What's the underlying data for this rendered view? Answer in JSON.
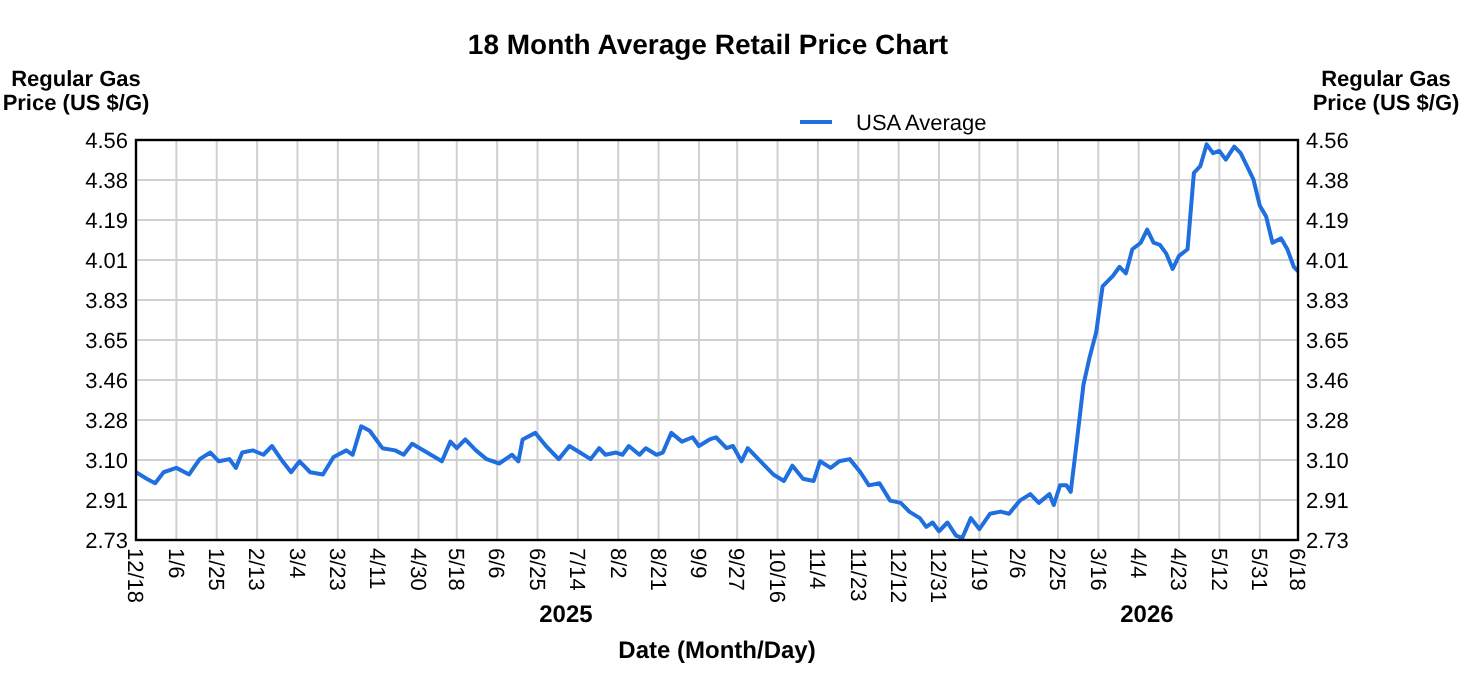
{
  "chart_data": {
    "type": "line",
    "title": "18 Month Average Retail Price Chart",
    "xlabel": "Date (Month/Day)",
    "ylabel": "Regular Gas Price (US $/G)",
    "y2label": "Regular Gas Price (US $/G)",
    "legend": "top",
    "grid": true,
    "annotations": [
      "2025",
      "2026"
    ],
    "xlim": [
      "2024-12-18",
      "2026-06-18"
    ],
    "xticks": [
      {
        "value": "2024-12-18",
        "label": "12/18"
      },
      {
        "value": "2025-01-06",
        "label": "1/6"
      },
      {
        "value": "2025-01-25",
        "label": "1/25"
      },
      {
        "value": "2025-02-13",
        "label": "2/13"
      },
      {
        "value": "2025-03-04",
        "label": "3/4"
      },
      {
        "value": "2025-03-23",
        "label": "3/23"
      },
      {
        "value": "2025-04-11",
        "label": "4/11"
      },
      {
        "value": "2025-04-30",
        "label": "4/30"
      },
      {
        "value": "2025-05-18",
        "label": "5/18"
      },
      {
        "value": "2025-06-06",
        "label": "6/6"
      },
      {
        "value": "2025-06-25",
        "label": "6/25"
      },
      {
        "value": "2025-07-14",
        "label": "7/14"
      },
      {
        "value": "2025-08-02",
        "label": "8/2"
      },
      {
        "value": "2025-08-21",
        "label": "8/21"
      },
      {
        "value": "2025-09-09",
        "label": "9/9"
      },
      {
        "value": "2025-09-27",
        "label": "9/27"
      },
      {
        "value": "2025-10-16",
        "label": "10/16"
      },
      {
        "value": "2025-11-04",
        "label": "11/4"
      },
      {
        "value": "2025-11-23",
        "label": "11/23"
      },
      {
        "value": "2025-12-12",
        "label": "12/12"
      },
      {
        "value": "2025-12-31",
        "label": "12/31"
      },
      {
        "value": "2026-01-19",
        "label": "1/19"
      },
      {
        "value": "2026-02-06",
        "label": "2/6"
      },
      {
        "value": "2026-02-25",
        "label": "2/25"
      },
      {
        "value": "2026-03-16",
        "label": "3/16"
      },
      {
        "value": "2026-04-04",
        "label": "4/4"
      },
      {
        "value": "2026-04-23",
        "label": "4/23"
      },
      {
        "value": "2026-05-12",
        "label": "5/12"
      },
      {
        "value": "2026-05-31",
        "label": "5/31"
      },
      {
        "value": "2026-06-18",
        "label": "6/18"
      }
    ],
    "ylim": [
      2.73,
      4.56
    ],
    "yticks": [
      2.73,
      {
        "value": 2.913,
        "label": "2.91"
      },
      {
        "value": 3.096,
        "label": "3.10"
      },
      {
        "value": 3.279,
        "label": "3.28"
      },
      {
        "value": 3.462,
        "label": "3.46"
      },
      {
        "value": 3.645,
        "label": "3.65"
      },
      {
        "value": 3.828,
        "label": "3.83"
      },
      {
        "value": 4.011,
        "label": "4.01"
      },
      {
        "value": 4.194,
        "label": "4.19"
      },
      {
        "value": 4.377,
        "label": "4.38"
      },
      4.56
    ],
    "y2lim": [
      2.73,
      4.56
    ],
    "y2ticks": [
      2.73,
      {
        "value": 2.913,
        "label": "2.91"
      },
      {
        "value": 3.096,
        "label": "3.10"
      },
      {
        "value": 3.279,
        "label": "3.28"
      },
      {
        "value": 3.462,
        "label": "3.46"
      },
      {
        "value": 3.645,
        "label": "3.65"
      },
      {
        "value": 3.828,
        "label": "3.83"
      },
      {
        "value": 4.011,
        "label": "4.01"
      },
      {
        "value": 4.194,
        "label": "4.19"
      },
      {
        "value": 4.377,
        "label": "4.38"
      },
      4.56
    ],
    "x": [
      "2024-12-18",
      "2024-12-23",
      "2024-12-27",
      "2024-12-31",
      "2025-01-06",
      "2025-01-12",
      "2025-01-17",
      "2025-01-22",
      "2025-01-26",
      "2025-01-31",
      "2025-02-03",
      "2025-02-06",
      "2025-02-11",
      "2025-02-16",
      "2025-02-20",
      "2025-02-25",
      "2025-03-01",
      "2025-03-05",
      "2025-03-10",
      "2025-03-16",
      "2025-03-21",
      "2025-03-27",
      "2025-03-30",
      "2025-04-03",
      "2025-04-07",
      "2025-04-13",
      "2025-04-19",
      "2025-04-23",
      "2025-04-27",
      "2025-05-04",
      "2025-05-11",
      "2025-05-15",
      "2025-05-18",
      "2025-05-22",
      "2025-05-27",
      "2025-06-01",
      "2025-06-07",
      "2025-06-13",
      "2025-06-16",
      "2025-06-18",
      "2025-06-24",
      "2025-06-29",
      "2025-07-05",
      "2025-07-10",
      "2025-07-15",
      "2025-07-20",
      "2025-07-24",
      "2025-07-27",
      "2025-08-01",
      "2025-08-04",
      "2025-08-07",
      "2025-08-12",
      "2025-08-15",
      "2025-08-20",
      "2025-08-23",
      "2025-08-27",
      "2025-09-01",
      "2025-09-06",
      "2025-09-09",
      "2025-09-14",
      "2025-09-17",
      "2025-09-22",
      "2025-09-25",
      "2025-09-29",
      "2025-10-02",
      "2025-10-08",
      "2025-10-14",
      "2025-10-19",
      "2025-10-23",
      "2025-10-28",
      "2025-11-02",
      "2025-11-05",
      "2025-11-10",
      "2025-11-14",
      "2025-11-19",
      "2025-11-24",
      "2025-11-28",
      "2025-12-03",
      "2025-12-08",
      "2025-12-13",
      "2025-12-17",
      "2025-12-22",
      "2025-12-25",
      "2025-12-28",
      "2025-12-31",
      "2026-01-04",
      "2026-01-08",
      "2026-01-11",
      "2026-01-15",
      "2026-01-19",
      "2026-01-24",
      "2026-01-29",
      "2026-02-02",
      "2026-02-07",
      "2026-02-12",
      "2026-02-16",
      "2026-02-21",
      "2026-02-23",
      "2026-02-26",
      "2026-03-01",
      "2026-03-03",
      "2026-03-06",
      "2026-03-09",
      "2026-03-12",
      "2026-03-15",
      "2026-03-18",
      "2026-03-23",
      "2026-03-26",
      "2026-03-29",
      "2026-04-01",
      "2026-04-05",
      "2026-04-08",
      "2026-04-11",
      "2026-04-14",
      "2026-04-17",
      "2026-04-20",
      "2026-04-23",
      "2026-04-27",
      "2026-04-30",
      "2026-05-03",
      "2026-05-06",
      "2026-05-09",
      "2026-05-12",
      "2026-05-15",
      "2026-05-19",
      "2026-05-22",
      "2026-05-25",
      "2026-05-28",
      "2026-05-31",
      "2026-06-03",
      "2026-06-06",
      "2026-06-10",
      "2026-06-13",
      "2026-06-16",
      "2026-06-18"
    ],
    "series": [
      {
        "name": "USA Average",
        "color": "#1f6fde",
        "values": [
          3.04,
          3.01,
          2.99,
          3.04,
          3.06,
          3.03,
          3.1,
          3.13,
          3.09,
          3.1,
          3.06,
          3.13,
          3.14,
          3.12,
          3.16,
          3.09,
          3.04,
          3.09,
          3.04,
          3.03,
          3.11,
          3.14,
          3.12,
          3.25,
          3.23,
          3.15,
          3.14,
          3.12,
          3.17,
          3.13,
          3.09,
          3.18,
          3.15,
          3.19,
          3.14,
          3.1,
          3.08,
          3.12,
          3.09,
          3.19,
          3.22,
          3.16,
          3.1,
          3.16,
          3.13,
          3.1,
          3.15,
          3.12,
          3.13,
          3.12,
          3.16,
          3.12,
          3.15,
          3.12,
          3.13,
          3.22,
          3.18,
          3.2,
          3.16,
          3.19,
          3.2,
          3.15,
          3.16,
          3.09,
          3.15,
          3.09,
          3.03,
          3.0,
          3.07,
          3.01,
          3.0,
          3.09,
          3.06,
          3.09,
          3.1,
          3.04,
          2.98,
          2.99,
          2.91,
          2.9,
          2.86,
          2.83,
          2.79,
          2.81,
          2.77,
          2.81,
          2.75,
          2.74,
          2.83,
          2.78,
          2.85,
          2.86,
          2.85,
          2.91,
          2.94,
          2.9,
          2.94,
          2.89,
          2.98,
          2.98,
          2.95,
          3.19,
          3.44,
          3.57,
          3.68,
          3.89,
          3.94,
          3.98,
          3.95,
          4.06,
          4.09,
          4.15,
          4.09,
          4.08,
          4.04,
          3.97,
          4.03,
          4.06,
          4.41,
          4.44,
          4.54,
          4.5,
          4.51,
          4.47,
          4.53,
          4.5,
          4.44,
          4.38,
          4.26,
          4.21,
          4.09,
          4.11,
          4.06,
          3.98,
          3.96
        ]
      }
    ]
  }
}
